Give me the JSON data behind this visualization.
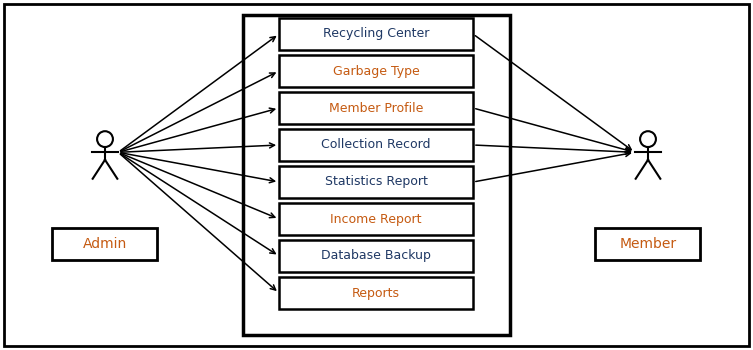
{
  "use_cases": [
    {
      "label": "Recycling Center",
      "color": "#1F3864"
    },
    {
      "label": "Garbage Type",
      "color": "#C55A11"
    },
    {
      "label": "Member Profile",
      "color": "#C55A11"
    },
    {
      "label": "Collection Record",
      "color": "#1F3864"
    },
    {
      "label": "Statistics Report",
      "color": "#1F3864"
    },
    {
      "label": "Income Report",
      "color": "#C55A11"
    },
    {
      "label": "Database Backup",
      "color": "#1F3864"
    },
    {
      "label": "Reports",
      "color": "#C55A11"
    }
  ],
  "admin_label": "Admin",
  "admin_label_color": "#C55A11",
  "member_label": "Member",
  "member_label_color": "#C55A11",
  "bg_color": "#ffffff",
  "admin_arrows": [
    0,
    1,
    2,
    3,
    4,
    5,
    6,
    7
  ],
  "member_arrows": [
    0,
    2,
    3,
    4
  ]
}
